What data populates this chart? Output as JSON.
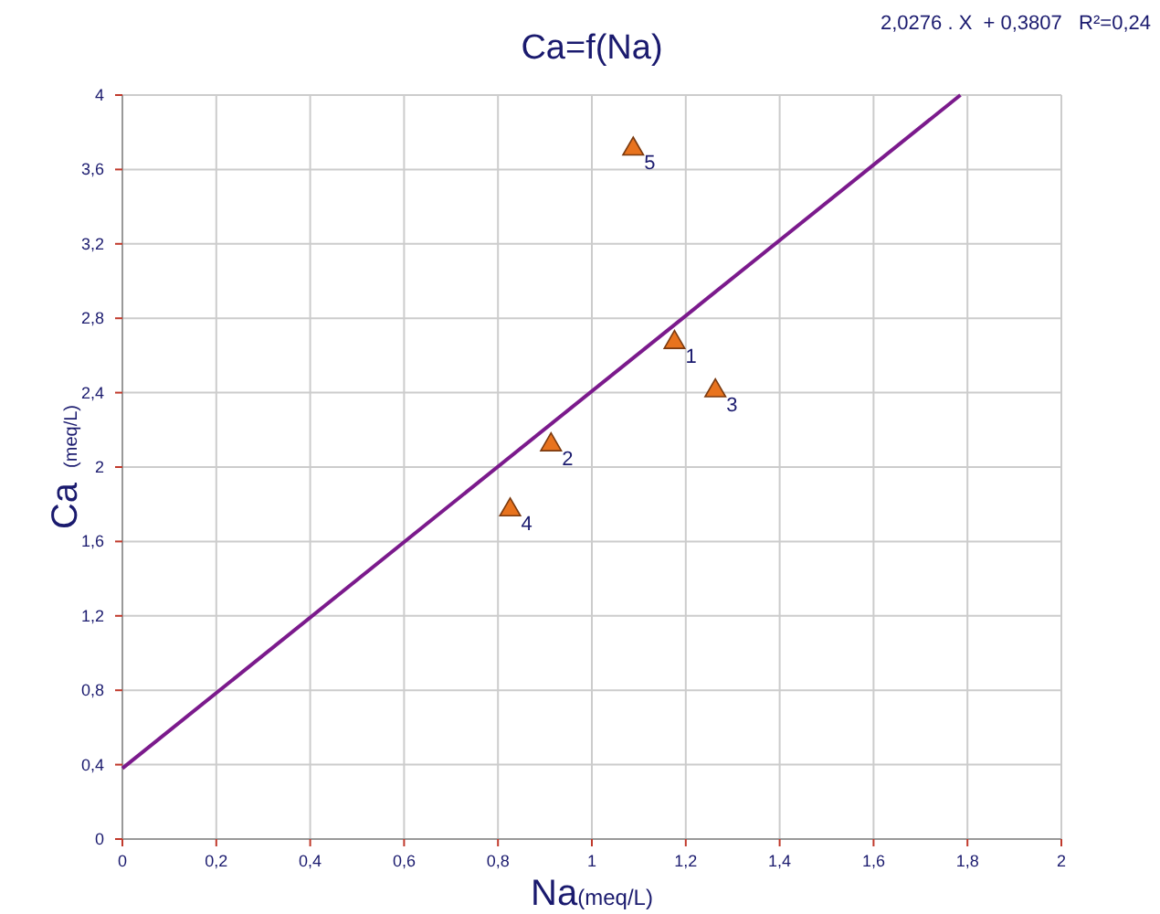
{
  "chart_data": {
    "type": "scatter",
    "title": "Ca=f(Na)",
    "xlabel": "Na(meq/L)",
    "ylabel": "Ca (meq/L)",
    "annotations": [
      "2,0276 . X  + 0,3807   R²=0,24",
      {
        "text": "1",
        "x": 1.176,
        "y": 2.67
      },
      {
        "text": "2",
        "x": 0.913,
        "y": 2.12
      },
      {
        "text": "3",
        "x": 1.263,
        "y": 2.41
      },
      {
        "text": "4",
        "x": 0.826,
        "y": 1.77
      },
      {
        "text": "5",
        "x": 1.088,
        "y": 3.71
      }
    ],
    "series": [
      {
        "color": "#e8731e",
        "x": [
          1.176,
          0.913,
          1.263,
          0.826,
          1.088
        ],
        "values": [
          2.67,
          2.12,
          2.41,
          1.77,
          3.71
        ],
        "marker": "triangle"
      },
      {
        "type": "line",
        "color": "#7b1a8c",
        "x": [
          0,
          1.785
        ],
        "values": [
          0.38,
          4.0
        ],
        "marker": "none"
      }
    ],
    "xlim": [
      0,
      2
    ],
    "ylim": [
      0,
      4
    ],
    "xticks": [
      0,
      {
        "value": 0.2,
        "label": "0,2"
      },
      {
        "value": 0.4,
        "label": "0,4"
      },
      {
        "value": 0.6,
        "label": "0,6"
      },
      {
        "value": 0.8,
        "label": "0,8"
      },
      1,
      {
        "value": 1.2,
        "label": "1,2"
      },
      {
        "value": 1.4,
        "label": "1,4"
      },
      {
        "value": 1.6,
        "label": "1,6"
      },
      {
        "value": 1.8,
        "label": "1,8"
      },
      2
    ],
    "yticks": [
      0,
      {
        "value": 0.4,
        "label": "0,4"
      },
      {
        "value": 0.8,
        "label": "0,8"
      },
      {
        "value": 1.2,
        "label": "1,2"
      },
      {
        "value": 1.6,
        "label": "1,6"
      },
      2,
      {
        "value": 2.4,
        "label": "2,4"
      },
      {
        "value": 2.8,
        "label": "2,8"
      },
      {
        "value": 3.2,
        "label": "3,2"
      },
      {
        "value": 3.6,
        "label": "3,6"
      },
      4
    ],
    "grid": true
  }
}
